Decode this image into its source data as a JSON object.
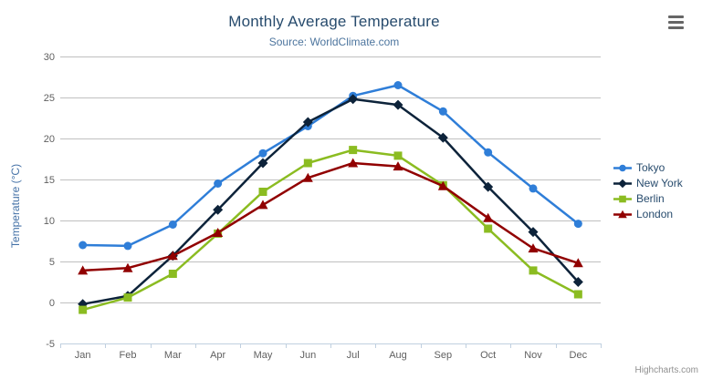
{
  "chart": {
    "credits": "Highcharts.com"
  },
  "chart_data": {
    "type": "line",
    "title": "Monthly Average Temperature",
    "subtitle": "Source: WorldClimate.com",
    "categories": [
      "Jan",
      "Feb",
      "Mar",
      "Apr",
      "May",
      "Jun",
      "Jul",
      "Aug",
      "Sep",
      "Oct",
      "Nov",
      "Dec"
    ],
    "xlabel": "",
    "ylabel": "Temperature (°C)",
    "ylim": [
      -5,
      30
    ],
    "ytick_step": 5,
    "grid": true,
    "legend_position": "right",
    "colors": {
      "grid_line": "#C0C0C0",
      "axis_line": "#C0D0E0",
      "axis_label": "#606060",
      "title": "#274b6d",
      "subtitle": "#4d759e",
      "y_axis_title": "#4572A7",
      "legend_text": "#274b6d",
      "credits_text": "#909090"
    },
    "series": [
      {
        "name": "Tokyo",
        "color": "#2f7ed8",
        "marker": "circle",
        "values": [
          7.0,
          6.9,
          9.5,
          14.5,
          18.2,
          21.5,
          25.2,
          26.5,
          23.3,
          18.3,
          13.9,
          9.6
        ]
      },
      {
        "name": "New York",
        "color": "#0d233a",
        "marker": "diamond",
        "values": [
          -0.2,
          0.8,
          5.7,
          11.3,
          17.0,
          22.0,
          24.8,
          24.1,
          20.1,
          14.1,
          8.6,
          2.5
        ]
      },
      {
        "name": "Berlin",
        "color": "#8bbc21",
        "marker": "square",
        "values": [
          -0.9,
          0.6,
          3.5,
          8.4,
          13.5,
          17.0,
          18.6,
          17.9,
          14.3,
          9.0,
          3.9,
          1.0
        ]
      },
      {
        "name": "London",
        "color": "#910000",
        "marker": "triangle",
        "values": [
          3.9,
          4.2,
          5.7,
          8.5,
          11.9,
          15.2,
          17.0,
          16.6,
          14.2,
          10.3,
          6.6,
          4.8
        ]
      }
    ]
  }
}
